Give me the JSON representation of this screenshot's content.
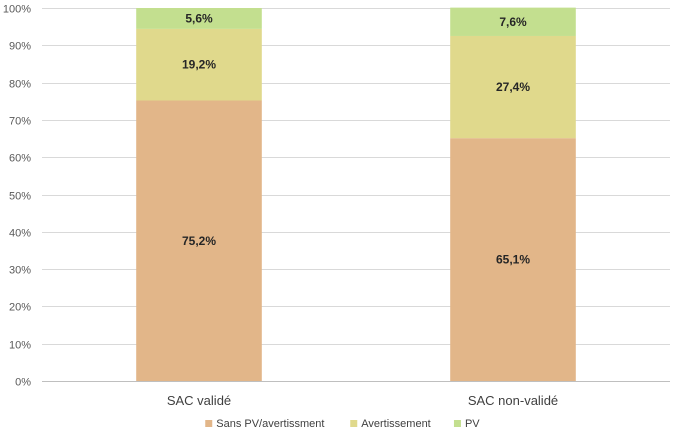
{
  "chart_data": {
    "type": "bar",
    "stacked": true,
    "percent": true,
    "categories": [
      "SAC validé",
      "SAC non-validé"
    ],
    "series": [
      {
        "name": "Sans PV/avertissment",
        "values": [
          75.2,
          65.1
        ],
        "labels": [
          "75,2%",
          "65,1%"
        ],
        "color": "#e2b689"
      },
      {
        "name": "Avertissement",
        "values": [
          19.2,
          27.4
        ],
        "labels": [
          "19,2%",
          "27,4%"
        ],
        "color": "#e0d98c"
      },
      {
        "name": "PV",
        "values": [
          5.6,
          7.6
        ],
        "labels": [
          "5,6%",
          "7,6%"
        ],
        "color": "#c3df8f"
      }
    ],
    "ylim": [
      0,
      100
    ],
    "yticks": [
      "0%",
      "10%",
      "20%",
      "30%",
      "40%",
      "50%",
      "60%",
      "70%",
      "80%",
      "90%",
      "100%"
    ],
    "grid": true,
    "legend_position": "bottom",
    "grid_color": "#d9d9d9"
  }
}
